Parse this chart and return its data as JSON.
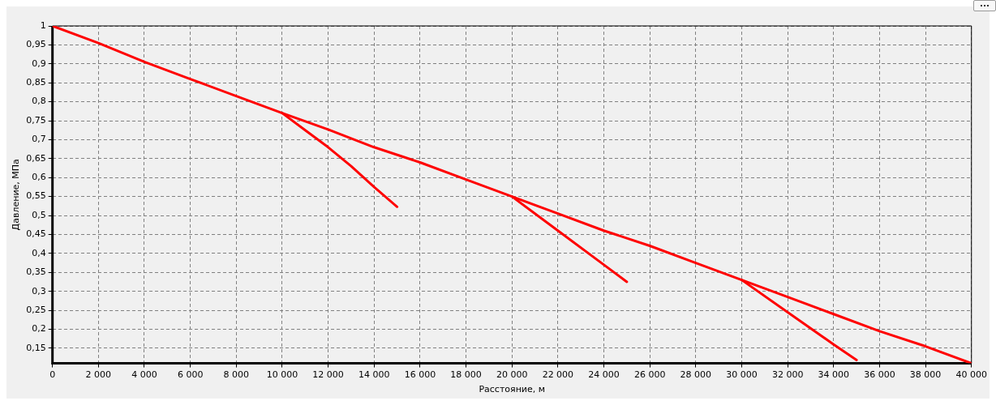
{
  "chart_data": {
    "type": "line",
    "xlabel": "Расстояние, м",
    "ylabel": "Давление, МПа",
    "xlim": [
      0,
      40000
    ],
    "ylim": [
      0.11,
      1
    ],
    "xticks": [
      0,
      {
        "value": 2000,
        "label": "2 000"
      },
      {
        "value": 4000,
        "label": "4 000"
      },
      {
        "value": 6000,
        "label": "6 000"
      },
      {
        "value": 8000,
        "label": "8 000"
      },
      {
        "value": 10000,
        "label": "10 000"
      },
      {
        "value": 12000,
        "label": "12 000"
      },
      {
        "value": 14000,
        "label": "14 000"
      },
      {
        "value": 16000,
        "label": "16 000"
      },
      {
        "value": 18000,
        "label": "18 000"
      },
      {
        "value": 20000,
        "label": "20 000"
      },
      {
        "value": 22000,
        "label": "22 000"
      },
      {
        "value": 24000,
        "label": "24 000"
      },
      {
        "value": 26000,
        "label": "26 000"
      },
      {
        "value": 28000,
        "label": "28 000"
      },
      {
        "value": 30000,
        "label": "30 000"
      },
      {
        "value": 32000,
        "label": "32 000"
      },
      {
        "value": 34000,
        "label": "34 000"
      },
      {
        "value": 36000,
        "label": "36 000"
      },
      {
        "value": 38000,
        "label": "38 000"
      },
      {
        "value": 40000,
        "label": "40 000"
      }
    ],
    "yticks": [
      {
        "value": 0.15,
        "label": "0,15"
      },
      {
        "value": 0.2,
        "label": "0,2"
      },
      {
        "value": 0.25,
        "label": "0,25"
      },
      {
        "value": 0.3,
        "label": "0,3"
      },
      {
        "value": 0.35,
        "label": "0,35"
      },
      {
        "value": 0.4,
        "label": "0,4"
      },
      {
        "value": 0.45,
        "label": "0,45"
      },
      {
        "value": 0.5,
        "label": "0,5"
      },
      {
        "value": 0.55,
        "label": "0,55"
      },
      {
        "value": 0.6,
        "label": "0,6"
      },
      {
        "value": 0.65,
        "label": "0,65"
      },
      {
        "value": 0.7,
        "label": "0,7"
      },
      {
        "value": 0.75,
        "label": "0,75"
      },
      {
        "value": 0.8,
        "label": "0,8"
      },
      {
        "value": 0.85,
        "label": "0,85"
      },
      {
        "value": 0.9,
        "label": "0,9"
      },
      {
        "value": 0.95,
        "label": "0,95"
      },
      1
    ],
    "grid": true,
    "legend": false,
    "marker": "none",
    "line_style": "solid",
    "series": [
      {
        "color": "#ff0000",
        "x": [
          0,
          2000,
          4000,
          6000,
          8000,
          10000,
          12000,
          14000,
          16000,
          18000,
          20000,
          22000,
          24000,
          26000,
          28000,
          30000,
          32000,
          34000,
          36000,
          38000,
          40000
        ],
        "values": [
          1,
          0.955,
          0.905,
          0.86,
          0.815,
          0.77,
          0.727,
          0.68,
          0.64,
          0.595,
          0.55,
          0.505,
          0.46,
          0.42,
          0.375,
          0.33,
          0.285,
          0.24,
          0.195,
          0.155,
          0.11
        ]
      },
      {
        "color": "#ff0000",
        "x": [
          10000,
          11000,
          12000,
          13000,
          14000,
          15000
        ],
        "values": [
          0.77,
          0.725,
          0.68,
          0.63,
          0.575,
          0.523
        ]
      },
      {
        "color": "#ff0000",
        "x": [
          20000,
          22000,
          24000,
          25000
        ],
        "values": [
          0.55,
          0.46,
          0.37,
          0.325
        ]
      },
      {
        "color": "#ff0000",
        "x": [
          30000,
          32000,
          34000,
          35000
        ],
        "values": [
          0.33,
          0.245,
          0.16,
          0.119
        ]
      }
    ]
  }
}
